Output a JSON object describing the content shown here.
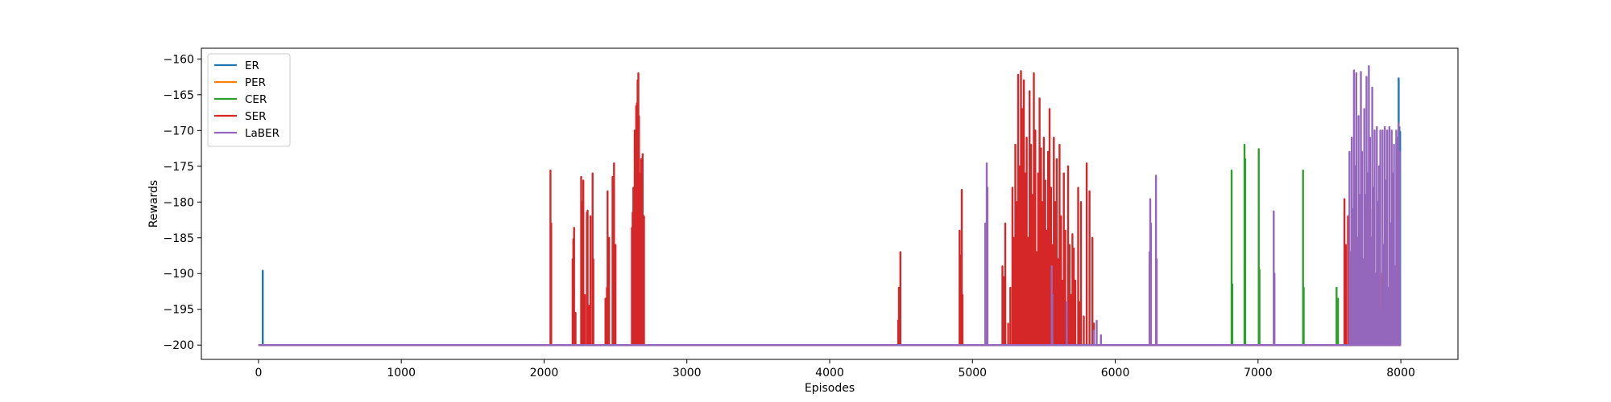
{
  "chart_data": {
    "type": "line",
    "title": "",
    "xlabel": "Episodes",
    "ylabel": "Rewards",
    "xlim": [
      -400,
      8400
    ],
    "ylim": [
      -202,
      -158.5
    ],
    "xticks": [
      0,
      1000,
      2000,
      3000,
      4000,
      5000,
      6000,
      7000,
      8000
    ],
    "yticks": [
      -200,
      -195,
      -190,
      -185,
      -180,
      -175,
      -170,
      -165,
      -160
    ],
    "grid": false,
    "legend_position": "top-left",
    "baseline": -200,
    "series": [
      {
        "name": "ER",
        "color": "#1f77b4",
        "spikes": [
          [
            30,
            -189.6
          ],
          [
            7985,
            -162.7
          ],
          [
            7990,
            -169.5
          ],
          [
            7995,
            -170.2
          ]
        ]
      },
      {
        "name": "PER",
        "color": "#ff7f0e",
        "spikes": []
      },
      {
        "name": "CER",
        "color": "#2ca02c",
        "spikes": [
          [
            6815,
            -175.6
          ],
          [
            6820,
            -191.5
          ],
          [
            6905,
            -172.0
          ],
          [
            6910,
            -174.0
          ],
          [
            7005,
            -172.6
          ],
          [
            7010,
            -189.5
          ],
          [
            7315,
            -175.6
          ],
          [
            7320,
            -192.0
          ],
          [
            7550,
            -192.0
          ],
          [
            7560,
            -193.5
          ],
          [
            7975,
            -175.0
          ]
        ]
      },
      {
        "name": "SER",
        "color": "#d62728",
        "spikes": [
          [
            2045,
            -175.6
          ],
          [
            2050,
            -183.0
          ],
          [
            2200,
            -188.0
          ],
          [
            2205,
            -185.2
          ],
          [
            2210,
            -183.6
          ],
          [
            2220,
            -195.5
          ],
          [
            2260,
            -176.5
          ],
          [
            2265,
            -180.0
          ],
          [
            2275,
            -177.0
          ],
          [
            2285,
            -193.0
          ],
          [
            2300,
            -181.5
          ],
          [
            2305,
            -181.2
          ],
          [
            2315,
            -194.5
          ],
          [
            2325,
            -182.0
          ],
          [
            2340,
            -176.0
          ],
          [
            2345,
            -188.0
          ],
          [
            2430,
            -193.5
          ],
          [
            2440,
            -192.0
          ],
          [
            2445,
            -178.5
          ],
          [
            2455,
            -185.0
          ],
          [
            2480,
            -176.5
          ],
          [
            2490,
            -174.6
          ],
          [
            2500,
            -186.0
          ],
          [
            2615,
            -183.6
          ],
          [
            2620,
            -181.5
          ],
          [
            2625,
            -178.0
          ],
          [
            2635,
            -170.0
          ],
          [
            2640,
            -175.6
          ],
          [
            2645,
            -166.6
          ],
          [
            2650,
            -166.2
          ],
          [
            2655,
            -163.0
          ],
          [
            2660,
            -162.0
          ],
          [
            2665,
            -168.0
          ],
          [
            2670,
            -176.0
          ],
          [
            2675,
            -180.0
          ],
          [
            2680,
            -174.0
          ],
          [
            2690,
            -173.3
          ],
          [
            2700,
            -182.0
          ],
          [
            4480,
            -196.6
          ],
          [
            4485,
            -192.0
          ],
          [
            4495,
            -187.0
          ],
          [
            4910,
            -184.0
          ],
          [
            4915,
            -187.5
          ],
          [
            4925,
            -178.3
          ],
          [
            4930,
            -193.0
          ],
          [
            5210,
            -189.0
          ],
          [
            5220,
            -190.5
          ],
          [
            5230,
            -183.0
          ],
          [
            5250,
            -197.0
          ],
          [
            5265,
            -192.0
          ],
          [
            5280,
            -178.0
          ],
          [
            5290,
            -185.0
          ],
          [
            5300,
            -172.0
          ],
          [
            5310,
            -180.0
          ],
          [
            5320,
            -162.2
          ],
          [
            5330,
            -175.0
          ],
          [
            5340,
            -161.7
          ],
          [
            5350,
            -167.0
          ],
          [
            5360,
            -163.0
          ],
          [
            5370,
            -176.0
          ],
          [
            5380,
            -171.0
          ],
          [
            5390,
            -185.0
          ],
          [
            5400,
            -164.5
          ],
          [
            5410,
            -172.0
          ],
          [
            5420,
            -179.0
          ],
          [
            5430,
            -162.0
          ],
          [
            5440,
            -170.0
          ],
          [
            5450,
            -187.0
          ],
          [
            5460,
            -176.0
          ],
          [
            5470,
            -165.5
          ],
          [
            5480,
            -172.5
          ],
          [
            5490,
            -180.0
          ],
          [
            5500,
            -171.0
          ],
          [
            5510,
            -177.0
          ],
          [
            5520,
            -184.0
          ],
          [
            5530,
            -173.0
          ],
          [
            5540,
            -167.0
          ],
          [
            5550,
            -178.0
          ],
          [
            5560,
            -186.0
          ],
          [
            5570,
            -171.0
          ],
          [
            5580,
            -180.0
          ],
          [
            5590,
            -174.0
          ],
          [
            5600,
            -188.0
          ],
          [
            5610,
            -172.0
          ],
          [
            5620,
            -182.0
          ],
          [
            5630,
            -191.0
          ],
          [
            5640,
            -176.0
          ],
          [
            5650,
            -184.0
          ],
          [
            5660,
            -197.0
          ],
          [
            5670,
            -175.0
          ],
          [
            5680,
            -186.0
          ],
          [
            5690,
            -193.0
          ],
          [
            5700,
            -184.5
          ],
          [
            5710,
            -186.5
          ],
          [
            5720,
            -191.0
          ],
          [
            5740,
            -178.0
          ],
          [
            5750,
            -194.0
          ],
          [
            5760,
            -180.0
          ],
          [
            5780,
            -196.0
          ],
          [
            5800,
            -174.6
          ],
          [
            5820,
            -178.5
          ],
          [
            5840,
            -185.0
          ],
          [
            5850,
            -197.0
          ],
          [
            7605,
            -179.6
          ],
          [
            7615,
            -186.0
          ],
          [
            7630,
            -182.0
          ],
          [
            7700,
            -190.0
          ],
          [
            7760,
            -183.0
          ],
          [
            7800,
            -181.0
          ],
          [
            7840,
            -187.0
          ],
          [
            7870,
            -190.0
          ]
        ]
      },
      {
        "name": "LaBER",
        "color": "#9467bd",
        "spikes": [
          [
            5090,
            -183.0
          ],
          [
            5100,
            -174.6
          ],
          [
            5105,
            -178.0
          ],
          [
            5555,
            -189.0
          ],
          [
            5560,
            -193.0
          ],
          [
            5660,
            -194.0
          ],
          [
            5850,
            -198.0
          ],
          [
            5870,
            -196.6
          ],
          [
            5900,
            -198.6
          ],
          [
            6240,
            -187.0
          ],
          [
            6245,
            -179.6
          ],
          [
            6250,
            -183.0
          ],
          [
            6285,
            -176.3
          ],
          [
            6290,
            -188.0
          ],
          [
            7110,
            -181.3
          ],
          [
            7115,
            -190.0
          ],
          [
            7640,
            -173.0
          ],
          [
            7648,
            -187.0
          ],
          [
            7656,
            -171.0
          ],
          [
            7664,
            -181.0
          ],
          [
            7672,
            -161.6
          ],
          [
            7680,
            -175.0
          ],
          [
            7688,
            -162.0
          ],
          [
            7696,
            -185.0
          ],
          [
            7704,
            -168.0
          ],
          [
            7712,
            -179.0
          ],
          [
            7720,
            -161.8
          ],
          [
            7728,
            -173.0
          ],
          [
            7736,
            -188.0
          ],
          [
            7744,
            -167.0
          ],
          [
            7752,
            -179.0
          ],
          [
            7760,
            -162.5
          ],
          [
            7768,
            -176.0
          ],
          [
            7776,
            -161.0
          ],
          [
            7784,
            -171.0
          ],
          [
            7792,
            -185.0
          ],
          [
            7800,
            -164.0
          ],
          [
            7808,
            -178.0
          ],
          [
            7816,
            -170.0
          ],
          [
            7824,
            -190.0
          ],
          [
            7832,
            -169.5
          ],
          [
            7840,
            -180.0
          ],
          [
            7848,
            -175.0
          ],
          [
            7856,
            -170.0
          ],
          [
            7864,
            -195.0
          ],
          [
            7872,
            -170.0
          ],
          [
            7880,
            -186.0
          ],
          [
            7888,
            -169.5
          ],
          [
            7896,
            -177.0
          ],
          [
            7904,
            -170.0
          ],
          [
            7912,
            -192.0
          ],
          [
            7920,
            -169.5
          ],
          [
            7928,
            -183.0
          ],
          [
            7936,
            -170.0
          ],
          [
            7944,
            -176.0
          ],
          [
            7952,
            -172.0
          ],
          [
            7960,
            -189.0
          ],
          [
            7968,
            -170.0
          ],
          [
            7976,
            -171.0
          ],
          [
            7984,
            -169.0
          ],
          [
            7992,
            -173.0
          ]
        ]
      }
    ]
  }
}
